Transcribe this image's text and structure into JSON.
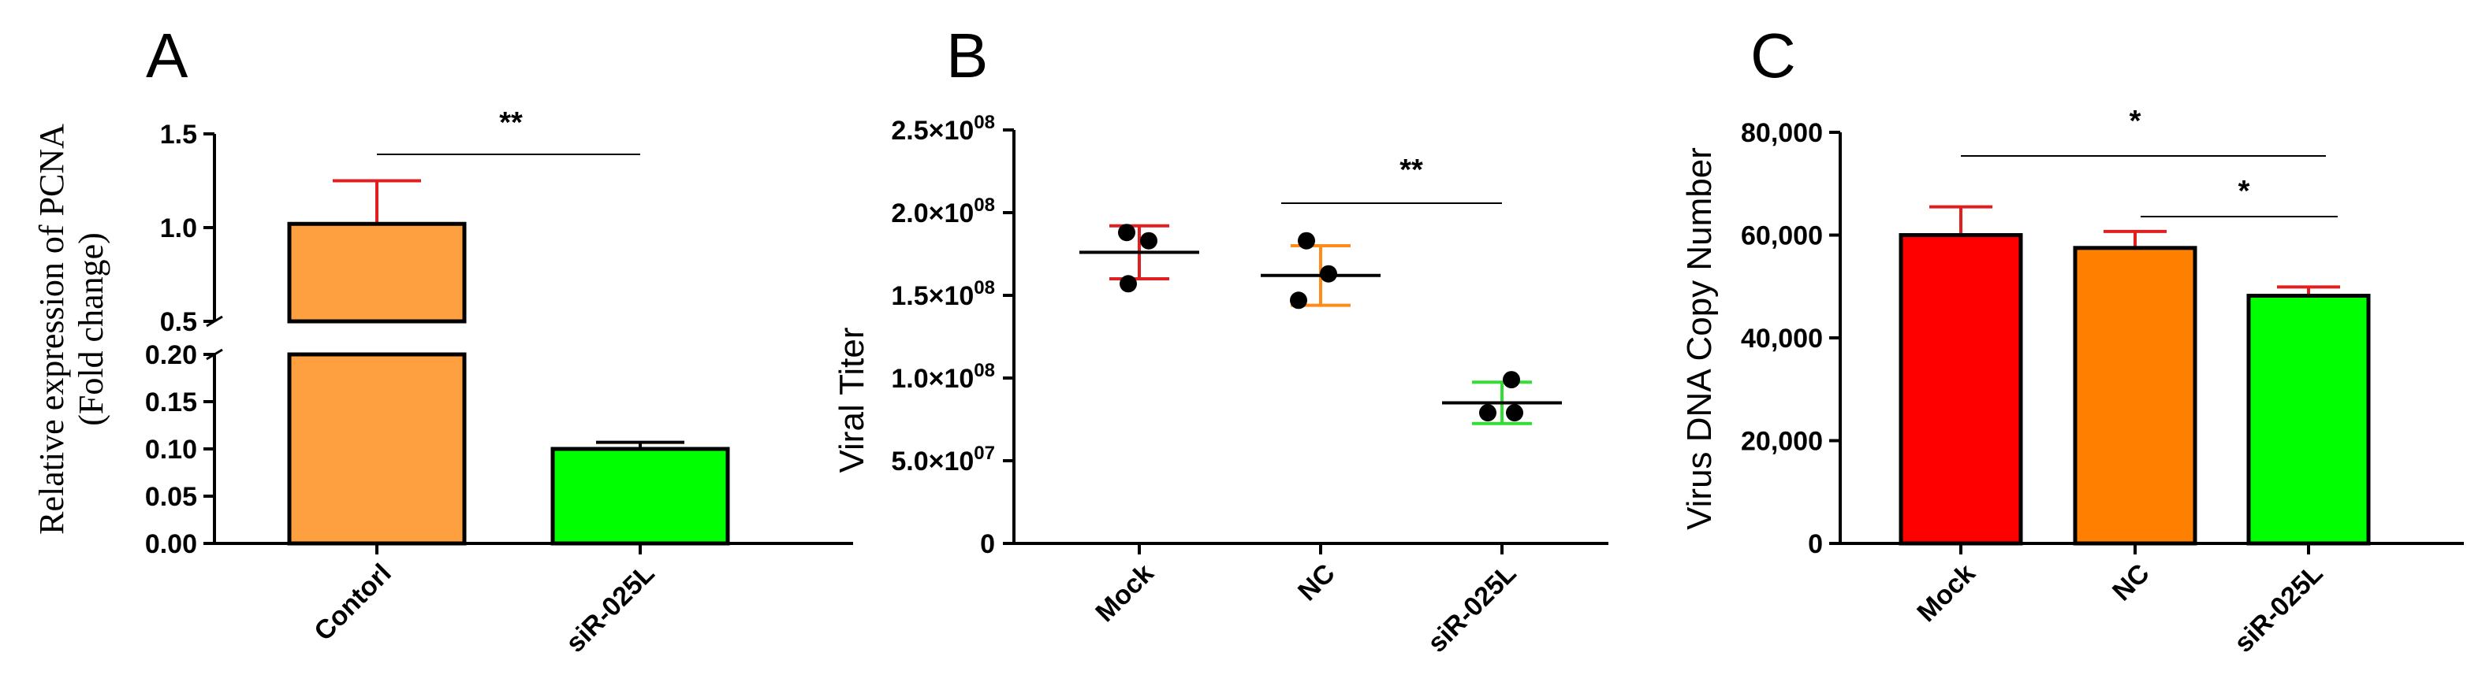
{
  "colors": {
    "contorl": "#ffa040",
    "sir025l": "#00ff00",
    "mock": "#ff0000",
    "nc": "#ff8000",
    "error_red": "#e02020",
    "error_orange": "#ff8c1a",
    "error_green": "#33dd33",
    "axis": "#000000"
  },
  "chart_data": [
    {
      "panel": "A",
      "type": "bar",
      "ylabel_line1": "Relative expression of PCNA",
      "ylabel_line2": "(Fold change)",
      "categories": [
        "Contorl",
        "siR-025L"
      ],
      "values": [
        1.02,
        0.1
      ],
      "errors": [
        0.23,
        0.007
      ],
      "y_axis_break": true,
      "lower_ticks": [
        "0.00",
        "0.05",
        "0.10",
        "0.15",
        "0.20"
      ],
      "lower_tick_values": [
        0,
        0.05,
        0.1,
        0.15,
        0.2
      ],
      "upper_ticks": [
        "0.5",
        "1.0",
        "1.5"
      ],
      "upper_tick_values": [
        0.5,
        1.0,
        1.5
      ],
      "ylim_lower": [
        0,
        0.2
      ],
      "ylim_upper": [
        0.5,
        1.5
      ],
      "significance": [
        {
          "label": "**",
          "from": 0,
          "to": 1
        }
      ]
    },
    {
      "panel": "B",
      "type": "scatter",
      "ylabel": "Viral Titer",
      "categories": [
        "Mock",
        "NC",
        "siR-025L"
      ],
      "points": [
        [
          188000000,
          183000000,
          157000000
        ],
        [
          183000000,
          163000000,
          147000000
        ],
        [
          99000000,
          79000000,
          79000000
        ]
      ],
      "means": [
        176000000,
        162000000,
        85000000
      ],
      "sd": [
        16000000,
        18000000,
        12500000
      ],
      "ticks": [
        {
          "value": 0,
          "base": "0",
          "exp": ""
        },
        {
          "value": 50000000,
          "base": "5.0×10",
          "exp": "07"
        },
        {
          "value": 100000000,
          "base": "1.0×10",
          "exp": "08"
        },
        {
          "value": 150000000,
          "base": "1.5×10",
          "exp": "08"
        },
        {
          "value": 200000000,
          "base": "2.0×10",
          "exp": "08"
        },
        {
          "value": 250000000,
          "base": "2.5×10",
          "exp": "08"
        }
      ],
      "ylim": [
        0,
        250000000
      ],
      "significance": [
        {
          "label": "**",
          "from": 1,
          "to": 2
        }
      ]
    },
    {
      "panel": "C",
      "type": "bar",
      "ylabel": "Virus DNA Copy Number",
      "categories": [
        "Mock",
        "NC",
        "siR-025L"
      ],
      "values": [
        60000,
        57500,
        48200
      ],
      "errors": [
        5500,
        3200,
        1700
      ],
      "ticks": [
        "0",
        "20,000",
        "40,000",
        "60,000",
        "80,000"
      ],
      "tick_values": [
        0,
        20000,
        40000,
        60000,
        80000
      ],
      "ylim": [
        0,
        80000
      ],
      "significance": [
        {
          "label": "*",
          "from": 0,
          "to": 2
        },
        {
          "label": "*",
          "from": 1,
          "to": 2
        }
      ]
    }
  ]
}
